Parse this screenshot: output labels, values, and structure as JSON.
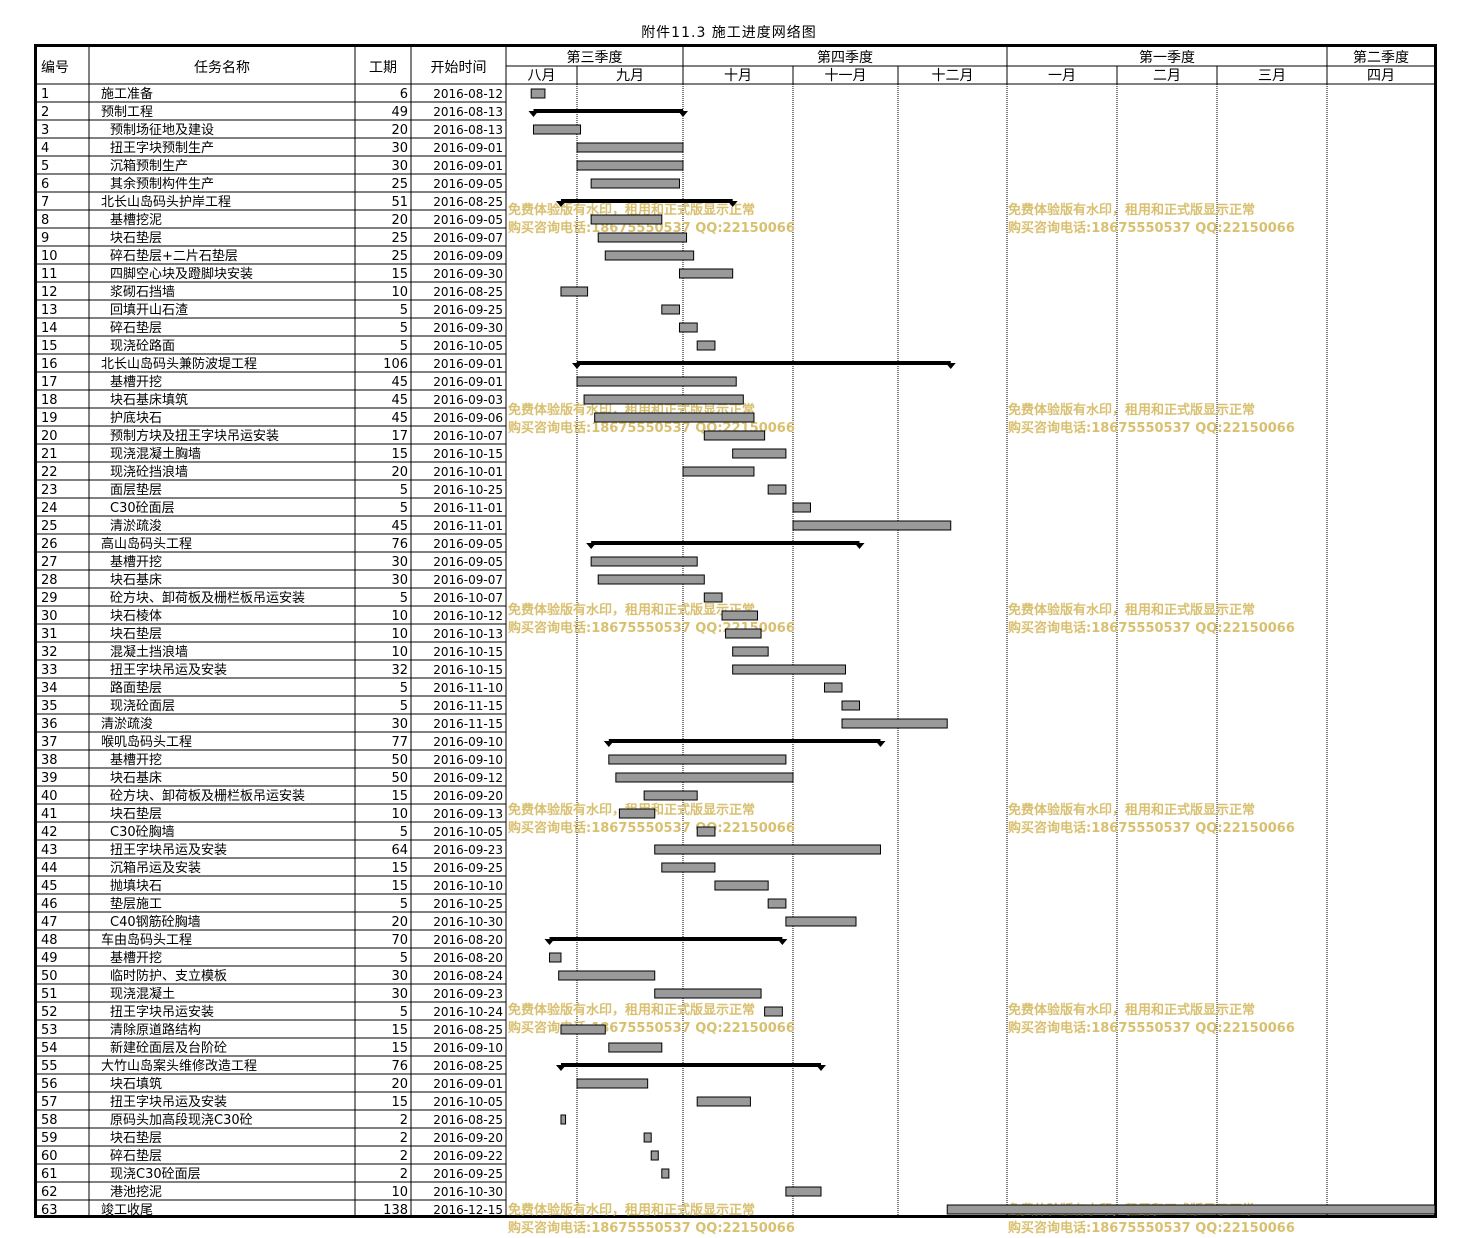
{
  "title": "附件11.3 施工进度网络图",
  "columns": {
    "id": "编号",
    "name": "任务名称",
    "duration": "工期",
    "start": "开始时间"
  },
  "quarters": [
    {
      "label": "第三季度",
      "months": 2
    },
    {
      "label": "第四季度",
      "months": 3
    },
    {
      "label": "第一季度",
      "months": 3
    },
    {
      "label": "第二季度",
      "months": 1
    }
  ],
  "months": [
    "八月",
    "九月",
    "十月",
    "十一月",
    "十二月",
    "一月",
    "二月",
    "三月",
    "四月"
  ],
  "watermark": {
    "line1": "免费体验版有水印，租用和正式版显示正常",
    "line2": "购买咨询电话:18675550537 QQ:22150066",
    "color": "#d9c070"
  },
  "colors": {
    "bar_fill": "#9a9a9a",
    "summary": "#000000",
    "grid": "#000000"
  },
  "chart_data": {
    "type": "gantt",
    "timeline": {
      "start": "2016-08-01",
      "end": "2017-04-30"
    },
    "tasks": [
      {
        "id": "1",
        "name": "施工准备",
        "duration": 6,
        "start": "2016-08-12",
        "level": 0,
        "summary": false
      },
      {
        "id": "2",
        "name": "预制工程",
        "duration": 49,
        "start": "2016-08-13",
        "level": 0,
        "summary": true
      },
      {
        "id": "3",
        "name": "预制场征地及建设",
        "duration": 20,
        "start": "2016-08-13",
        "level": 1,
        "summary": false
      },
      {
        "id": "4",
        "name": "扭王字块预制生产",
        "duration": 30,
        "start": "2016-09-01",
        "level": 1,
        "summary": false
      },
      {
        "id": "5",
        "name": "沉箱预制生产",
        "duration": 30,
        "start": "2016-09-01",
        "level": 1,
        "summary": false
      },
      {
        "id": "6",
        "name": "其余预制构件生产",
        "duration": 25,
        "start": "2016-09-05",
        "level": 1,
        "summary": false
      },
      {
        "id": "7",
        "name": "北长山岛码头护岸工程",
        "duration": 51,
        "start": "2016-08-25",
        "level": 0,
        "summary": true
      },
      {
        "id": "8",
        "name": "基槽挖泥",
        "duration": 20,
        "start": "2016-09-05",
        "level": 1,
        "summary": false
      },
      {
        "id": "9",
        "name": "块石垫层",
        "duration": 25,
        "start": "2016-09-07",
        "level": 1,
        "summary": false
      },
      {
        "id": "10",
        "name": "碎石垫层+二片石垫层",
        "duration": 25,
        "start": "2016-09-09",
        "level": 1,
        "summary": false
      },
      {
        "id": "11",
        "name": "四脚空心块及蹬脚块安装",
        "duration": 15,
        "start": "2016-09-30",
        "level": 1,
        "summary": false
      },
      {
        "id": "12",
        "name": "浆砌石挡墙",
        "duration": 10,
        "start": "2016-08-25",
        "level": 1,
        "summary": false
      },
      {
        "id": "13",
        "name": "回填开山石渣",
        "duration": 5,
        "start": "2016-09-25",
        "level": 1,
        "summary": false
      },
      {
        "id": "14",
        "name": "碎石垫层",
        "duration": 5,
        "start": "2016-09-30",
        "level": 1,
        "summary": false
      },
      {
        "id": "15",
        "name": "现浇砼路面",
        "duration": 5,
        "start": "2016-10-05",
        "level": 1,
        "summary": false
      },
      {
        "id": "16",
        "name": "北长山岛码头兼防波堤工程",
        "duration": 106,
        "start": "2016-09-01",
        "level": 0,
        "summary": true
      },
      {
        "id": "17",
        "name": "基槽开挖",
        "duration": 45,
        "start": "2016-09-01",
        "level": 1,
        "summary": false
      },
      {
        "id": "18",
        "name": "块石基床填筑",
        "duration": 45,
        "start": "2016-09-03",
        "level": 1,
        "summary": false
      },
      {
        "id": "19",
        "name": "护底块石",
        "duration": 45,
        "start": "2016-09-06",
        "level": 1,
        "summary": false
      },
      {
        "id": "20",
        "name": "预制方块及扭王字块吊运安装",
        "duration": 17,
        "start": "2016-10-07",
        "level": 1,
        "summary": false
      },
      {
        "id": "21",
        "name": "现浇混凝土胸墙",
        "duration": 15,
        "start": "2016-10-15",
        "level": 1,
        "summary": false
      },
      {
        "id": "22",
        "name": "现浇砼挡浪墙",
        "duration": 20,
        "start": "2016-10-01",
        "level": 1,
        "summary": false
      },
      {
        "id": "23",
        "name": "面层垫层",
        "duration": 5,
        "start": "2016-10-25",
        "level": 1,
        "summary": false
      },
      {
        "id": "24",
        "name": "C30砼面层",
        "duration": 5,
        "start": "2016-11-01",
        "level": 1,
        "summary": false
      },
      {
        "id": "25",
        "name": "清淤疏浚",
        "duration": 45,
        "start": "2016-11-01",
        "level": 1,
        "summary": false
      },
      {
        "id": "26",
        "name": "高山岛码头工程",
        "duration": 76,
        "start": "2016-09-05",
        "level": 0,
        "summary": true
      },
      {
        "id": "27",
        "name": "基槽开挖",
        "duration": 30,
        "start": "2016-09-05",
        "level": 1,
        "summary": false
      },
      {
        "id": "28",
        "name": "块石基床",
        "duration": 30,
        "start": "2016-09-07",
        "level": 1,
        "summary": false
      },
      {
        "id": "29",
        "name": "砼方块、卸荷板及栅栏板吊运安装",
        "duration": 5,
        "start": "2016-10-07",
        "level": 1,
        "summary": false
      },
      {
        "id": "30",
        "name": "块石棱体",
        "duration": 10,
        "start": "2016-10-12",
        "level": 1,
        "summary": false
      },
      {
        "id": "31",
        "name": "块石垫层",
        "duration": 10,
        "start": "2016-10-13",
        "level": 1,
        "summary": false
      },
      {
        "id": "32",
        "name": "混凝土挡浪墙",
        "duration": 10,
        "start": "2016-10-15",
        "level": 1,
        "summary": false
      },
      {
        "id": "33",
        "name": "扭王字块吊运及安装",
        "duration": 32,
        "start": "2016-10-15",
        "level": 1,
        "summary": false
      },
      {
        "id": "34",
        "name": "路面垫层",
        "duration": 5,
        "start": "2016-11-10",
        "level": 1,
        "summary": false
      },
      {
        "id": "35",
        "name": "现浇砼面层",
        "duration": 5,
        "start": "2016-11-15",
        "level": 1,
        "summary": false
      },
      {
        "id": "36",
        "name": "清淤疏浚",
        "duration": 30,
        "start": "2016-11-15",
        "level": 0,
        "summary": false
      },
      {
        "id": "37",
        "name": "喉叽岛码头工程",
        "duration": 77,
        "start": "2016-09-10",
        "level": 0,
        "summary": true
      },
      {
        "id": "38",
        "name": "基槽开挖",
        "duration": 50,
        "start": "2016-09-10",
        "level": 1,
        "summary": false
      },
      {
        "id": "39",
        "name": "块石基床",
        "duration": 50,
        "start": "2016-09-12",
        "level": 1,
        "summary": false
      },
      {
        "id": "40",
        "name": "砼方块、卸荷板及栅栏板吊运安装",
        "duration": 15,
        "start": "2016-09-20",
        "level": 1,
        "summary": false
      },
      {
        "id": "41",
        "name": "块石垫层",
        "duration": 10,
        "start": "2016-09-13",
        "level": 1,
        "summary": false
      },
      {
        "id": "42",
        "name": "C30砼胸墙",
        "duration": 5,
        "start": "2016-10-05",
        "level": 1,
        "summary": false
      },
      {
        "id": "43",
        "name": "扭王字块吊运及安装",
        "duration": 64,
        "start": "2016-09-23",
        "level": 1,
        "summary": false
      },
      {
        "id": "44",
        "name": "沉箱吊运及安装",
        "duration": 15,
        "start": "2016-09-25",
        "level": 1,
        "summary": false
      },
      {
        "id": "45",
        "name": "抛填块石",
        "duration": 15,
        "start": "2016-10-10",
        "level": 1,
        "summary": false
      },
      {
        "id": "46",
        "name": "垫层施工",
        "duration": 5,
        "start": "2016-10-25",
        "level": 1,
        "summary": false
      },
      {
        "id": "47",
        "name": "C40钢筋砼胸墙",
        "duration": 20,
        "start": "2016-10-30",
        "level": 1,
        "summary": false
      },
      {
        "id": "48",
        "name": "车由岛码头工程",
        "duration": 70,
        "start": "2016-08-20",
        "level": 0,
        "summary": true
      },
      {
        "id": "49",
        "name": "基槽开挖",
        "duration": 5,
        "start": "2016-08-20",
        "level": 1,
        "summary": false
      },
      {
        "id": "50",
        "name": "临时防护、支立模板",
        "duration": 30,
        "start": "2016-08-24",
        "level": 1,
        "summary": false
      },
      {
        "id": "51",
        "name": "现浇混凝土",
        "duration": 30,
        "start": "2016-09-23",
        "level": 1,
        "summary": false
      },
      {
        "id": "52",
        "name": "扭王字块吊运安装",
        "duration": 5,
        "start": "2016-10-24",
        "level": 1,
        "summary": false
      },
      {
        "id": "53",
        "name": "清除原道路结构",
        "duration": 15,
        "start": "2016-08-25",
        "level": 1,
        "summary": false
      },
      {
        "id": "54",
        "name": "新建砼面层及台阶砼",
        "duration": 15,
        "start": "2016-09-10",
        "level": 1,
        "summary": false
      },
      {
        "id": "55",
        "name": "大竹山岛案头维修改造工程",
        "duration": 76,
        "start": "2016-08-25",
        "level": 0,
        "summary": true
      },
      {
        "id": "56",
        "name": "块石填筑",
        "duration": 20,
        "start": "2016-09-01",
        "level": 1,
        "summary": false
      },
      {
        "id": "57",
        "name": "扭王字块吊运及安装",
        "duration": 15,
        "start": "2016-10-05",
        "level": 1,
        "summary": false
      },
      {
        "id": "58",
        "name": "原码头加高段现浇C30砼",
        "duration": 2,
        "start": "2016-08-25",
        "level": 1,
        "summary": false
      },
      {
        "id": "59",
        "name": "块石垫层",
        "duration": 2,
        "start": "2016-09-20",
        "level": 1,
        "summary": false
      },
      {
        "id": "60",
        "name": "碎石垫层",
        "duration": 2,
        "start": "2016-09-22",
        "level": 1,
        "summary": false
      },
      {
        "id": "61",
        "name": "现浇C30砼面层",
        "duration": 2,
        "start": "2016-09-25",
        "level": 1,
        "summary": false
      },
      {
        "id": "62",
        "name": "港池挖泥",
        "duration": 10,
        "start": "2016-10-30",
        "level": 1,
        "summary": false
      },
      {
        "id": "63",
        "name": "竣工收尾",
        "duration": 138,
        "start": "2016-12-15",
        "level": 0,
        "summary": false
      }
    ]
  }
}
